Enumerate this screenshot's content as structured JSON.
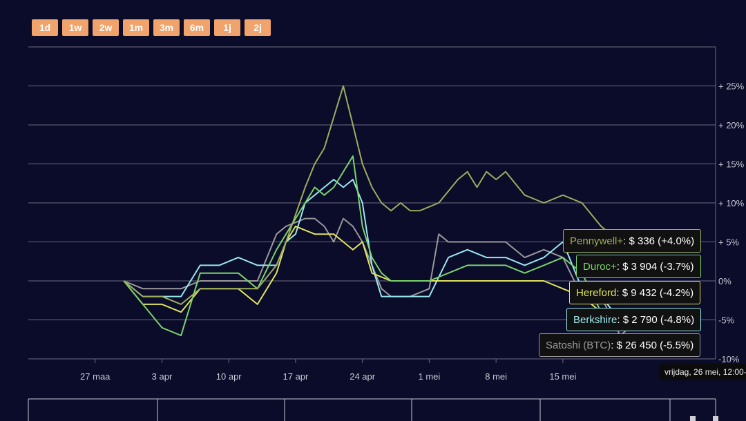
{
  "range_buttons": [
    "1d",
    "1w",
    "2w",
    "1m",
    "3m",
    "6m",
    "1j",
    "2j"
  ],
  "tooltip": {
    "date": "vrijdag, 26 mei, 12:00-"
  },
  "series_labels": [
    {
      "name": "Pennywell+",
      "text": ": $ 336 (+4.0%)",
      "color": "#9eae5c"
    },
    {
      "name": "Duroc+",
      "text": ": $ 3 904 (-3.7%)",
      "color": "#79d56b"
    },
    {
      "name": "Hereford",
      "text": ": $ 9 432 (-4.2%)",
      "color": "#e1e65a"
    },
    {
      "name": "Berkshire",
      "text": ": $ 2 790 (-4.8%)",
      "color": "#9ae8ee"
    },
    {
      "name": "Satoshi (BTC)",
      "text": ": $ 26 450 (-5.5%)",
      "color": "#9b999c"
    }
  ],
  "chart_data": {
    "type": "line",
    "x_ticks": [
      "27 maa",
      "3 apr",
      "10 apr",
      "17 apr",
      "24 apr",
      "1 mei",
      "8 mei",
      "15 mei"
    ],
    "y_ticks": [
      "+ 25%",
      "+ 20%",
      "+ 15%",
      "+ 10%",
      "+ 5%",
      "0%",
      "-5%",
      "-10%"
    ],
    "ylim": [
      -10,
      30
    ],
    "xlim_days": [
      -10,
      62
    ],
    "grid": true,
    "series": [
      {
        "name": "Pennywell+",
        "color": "#9eae5c",
        "x": [
          0,
          2,
          4,
          6,
          8,
          10,
          12,
          14,
          16,
          17,
          19,
          20,
          21,
          23,
          24,
          25,
          26,
          27,
          28,
          29,
          30,
          31,
          33,
          35,
          36,
          37,
          38,
          39,
          40,
          42,
          44,
          46,
          48,
          50,
          52,
          54,
          56,
          58,
          59
        ],
        "y": [
          0,
          -2,
          -2,
          -3,
          -1,
          -1,
          -1,
          -1,
          2,
          5,
          12,
          15,
          17,
          25,
          20,
          15,
          12,
          10,
          9,
          10,
          9,
          9,
          10,
          13,
          14,
          12,
          14,
          13,
          14,
          11,
          10,
          11,
          10,
          7,
          5,
          4,
          4,
          4,
          4
        ]
      },
      {
        "name": "Duroc+",
        "color": "#79d56b",
        "x": [
          0,
          2,
          4,
          6,
          7,
          8,
          10,
          12,
          14,
          16,
          17,
          19,
          20,
          21,
          22,
          24,
          25,
          26,
          27,
          28,
          30,
          32,
          34,
          36,
          38,
          40,
          42,
          44,
          46,
          48,
          50,
          52,
          54,
          56,
          58,
          59
        ],
        "y": [
          0,
          -3,
          -6,
          -7,
          -3,
          1,
          1,
          1,
          -1,
          4,
          6,
          10,
          12,
          11,
          12,
          16,
          7,
          3,
          1,
          0,
          0,
          0,
          1,
          2,
          2,
          2,
          1,
          2,
          3,
          1,
          -4,
          -5,
          -5,
          -5,
          -5,
          -5
        ]
      },
      {
        "name": "Hereford",
        "color": "#e1e65a",
        "x": [
          0,
          2,
          4,
          6,
          8,
          10,
          12,
          14,
          16,
          17,
          18,
          20,
          22,
          24,
          25,
          26,
          28,
          30,
          32,
          34,
          36,
          38,
          40,
          42,
          44,
          46,
          48,
          50,
          52,
          54,
          56,
          58,
          59
        ],
        "y": [
          0,
          -3,
          -3,
          -4,
          -1,
          -1,
          -1,
          -3,
          1,
          5,
          7,
          6,
          6,
          4,
          5,
          1,
          0,
          0,
          0,
          0,
          0,
          0,
          0,
          0,
          0,
          -1,
          -2,
          -4,
          -5,
          -5,
          -5,
          -5,
          -5
        ]
      },
      {
        "name": "Berkshire",
        "color": "#9ae8ee",
        "x": [
          0,
          2,
          4,
          6,
          8,
          10,
          12,
          14,
          16,
          17,
          18,
          19,
          20,
          22,
          23,
          24,
          25,
          26,
          27,
          28,
          30,
          32,
          34,
          36,
          38,
          40,
          42,
          44,
          46,
          48,
          50,
          52,
          54,
          56,
          58,
          59
        ],
        "y": [
          0,
          -2,
          -2,
          -2,
          2,
          2,
          3,
          2,
          2,
          5,
          6,
          10,
          11,
          13,
          12,
          13,
          10,
          2,
          -2,
          -2,
          -2,
          -2,
          3,
          4,
          3,
          3,
          2,
          3,
          5,
          -1,
          -2,
          -5,
          -6,
          -6,
          -5,
          -5
        ]
      },
      {
        "name": "Satoshi (BTC)",
        "color": "#9b999c",
        "x": [
          0,
          2,
          4,
          6,
          8,
          10,
          12,
          14,
          16,
          17,
          19,
          20,
          21,
          22,
          23,
          24,
          25,
          26,
          27,
          28,
          30,
          32,
          33,
          34,
          36,
          38,
          40,
          42,
          44,
          46,
          48,
          50,
          52,
          54,
          56,
          58,
          59
        ],
        "y": [
          0,
          -1,
          -1,
          -1,
          0,
          0,
          0,
          0,
          6,
          7,
          8,
          8,
          7,
          5,
          8,
          7,
          5,
          2,
          -1,
          -2,
          -2,
          -1,
          6,
          5,
          5,
          5,
          5,
          3,
          4,
          3,
          -2,
          -2,
          -7,
          -5,
          -5,
          -6,
          -5
        ]
      }
    ]
  }
}
